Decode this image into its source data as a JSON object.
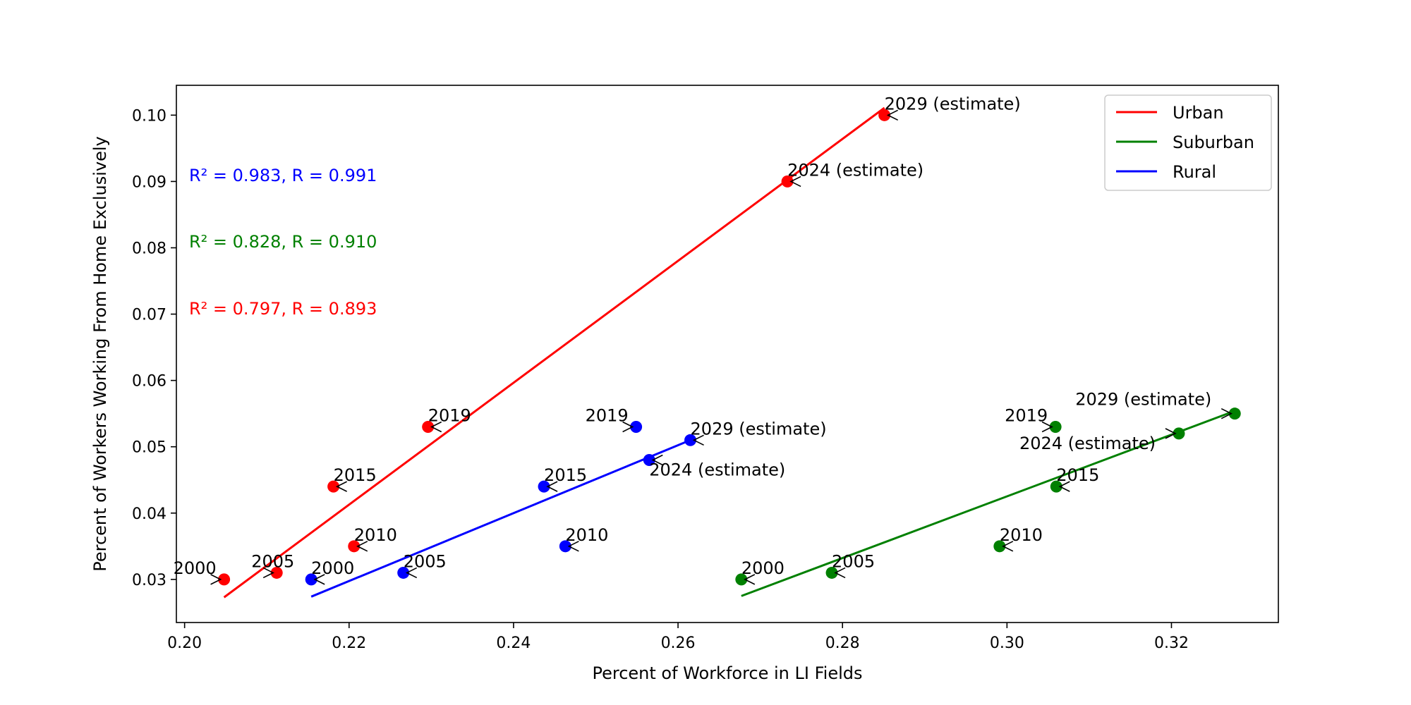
{
  "chart_data": {
    "type": "scatter",
    "title": "",
    "xlabel": "Percent of Workforce in LI Fields",
    "ylabel": "Percent of Workers Working From Home Exclusively",
    "xlim": [
      0.199,
      0.333
    ],
    "ylim": [
      0.0235,
      0.1045
    ],
    "xticks": [
      0.2,
      0.22,
      0.24,
      0.26,
      0.28,
      0.3,
      0.32
    ],
    "xtick_labels": [
      "0.20",
      "0.22",
      "0.24",
      "0.26",
      "0.28",
      "0.30",
      "0.32"
    ],
    "yticks": [
      0.03,
      0.04,
      0.05,
      0.06,
      0.07,
      0.08,
      0.09,
      0.1
    ],
    "ytick_labels": [
      "0.03",
      "0.04",
      "0.05",
      "0.06",
      "0.07",
      "0.08",
      "0.09",
      "0.10"
    ],
    "grid": false,
    "legend": {
      "placement": "top-right",
      "entries": [
        "Urban",
        "Suburban",
        "Rural"
      ]
    },
    "series": [
      {
        "name": "Urban",
        "color": "#ff0000",
        "points": [
          {
            "label": "2000",
            "x": 0.2048,
            "y": 0.03
          },
          {
            "label": "2005",
            "x": 0.2112,
            "y": 0.031
          },
          {
            "label": "2010",
            "x": 0.2206,
            "y": 0.035
          },
          {
            "label": "2015",
            "x": 0.2181,
            "y": 0.044
          },
          {
            "label": "2019",
            "x": 0.2296,
            "y": 0.053
          },
          {
            "label": "2024 (estimate)",
            "x": 0.2733,
            "y": 0.09
          },
          {
            "label": "2029 (estimate)",
            "x": 0.2851,
            "y": 0.1
          }
        ],
        "fit_line": {
          "x": [
            0.2048,
            0.2851
          ],
          "y": [
            0.0273,
            0.1011
          ]
        },
        "stat_text": "R² = 0.797, R = 0.893"
      },
      {
        "name": "Suburban",
        "color": "#008000",
        "points": [
          {
            "label": "2000",
            "x": 0.2677,
            "y": 0.03
          },
          {
            "label": "2005",
            "x": 0.2787,
            "y": 0.031
          },
          {
            "label": "2010",
            "x": 0.2991,
            "y": 0.035
          },
          {
            "label": "2015",
            "x": 0.306,
            "y": 0.044
          },
          {
            "label": "2019",
            "x": 0.3059,
            "y": 0.053
          },
          {
            "label": "2024 (estimate)",
            "x": 0.3209,
            "y": 0.052
          },
          {
            "label": "2029 (estimate)",
            "x": 0.3277,
            "y": 0.055
          }
        ],
        "fit_line": {
          "x": [
            0.2677,
            0.3277
          ],
          "y": [
            0.0275,
            0.0554
          ]
        },
        "stat_text": "R² = 0.828, R = 0.910"
      },
      {
        "name": "Rural",
        "color": "#0000ff",
        "points": [
          {
            "label": "2000",
            "x": 0.2154,
            "y": 0.03
          },
          {
            "label": "2005",
            "x": 0.2266,
            "y": 0.031
          },
          {
            "label": "2010",
            "x": 0.2463,
            "y": 0.035
          },
          {
            "label": "2015",
            "x": 0.2437,
            "y": 0.044
          },
          {
            "label": "2019",
            "x": 0.2549,
            "y": 0.053
          },
          {
            "label": "2024 (estimate)",
            "x": 0.2565,
            "y": 0.048
          },
          {
            "label": "2029 (estimate)",
            "x": 0.2615,
            "y": 0.051
          }
        ],
        "fit_line": {
          "x": [
            0.2154,
            0.2615
          ],
          "y": [
            0.0274,
            0.051
          ]
        },
        "stat_text": "R² = 0.983, R = 0.991"
      }
    ]
  }
}
